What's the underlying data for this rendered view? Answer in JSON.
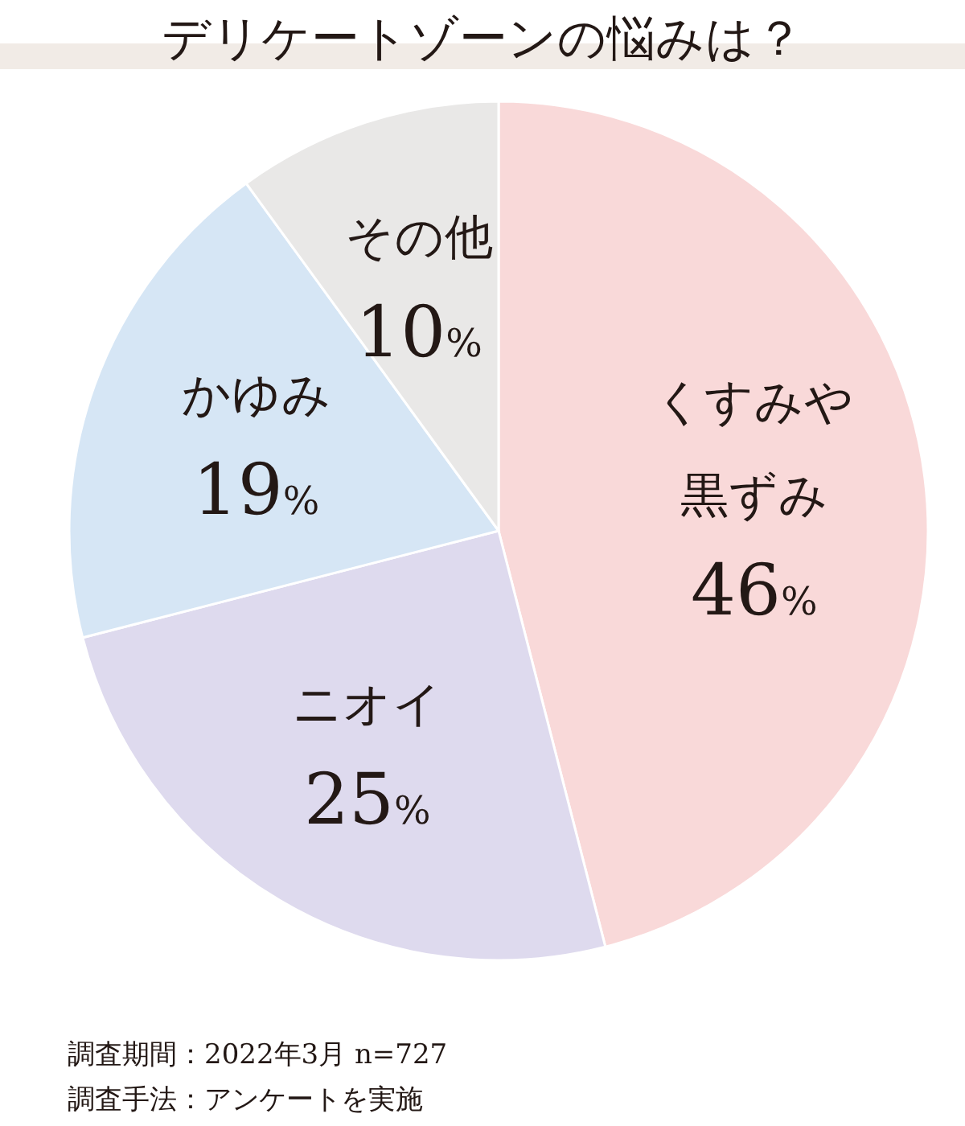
{
  "chart_data": {
    "type": "pie",
    "title": "デリケートゾーンの悩みは？",
    "categories": [
      "くすみや黒ずみ",
      "ニオイ",
      "かゆみ",
      "その他"
    ],
    "values": [
      46,
      25,
      19,
      10
    ],
    "value_labels": [
      "46%",
      "25%",
      "19%",
      "10%"
    ],
    "colors": [
      "#f9d9d9",
      "#dedaee",
      "#d6e6f5",
      "#e9e8e7"
    ],
    "annotations": [
      "調査期間：2022年3月 n=727",
      "調査手法：アンケートを実施"
    ]
  }
}
